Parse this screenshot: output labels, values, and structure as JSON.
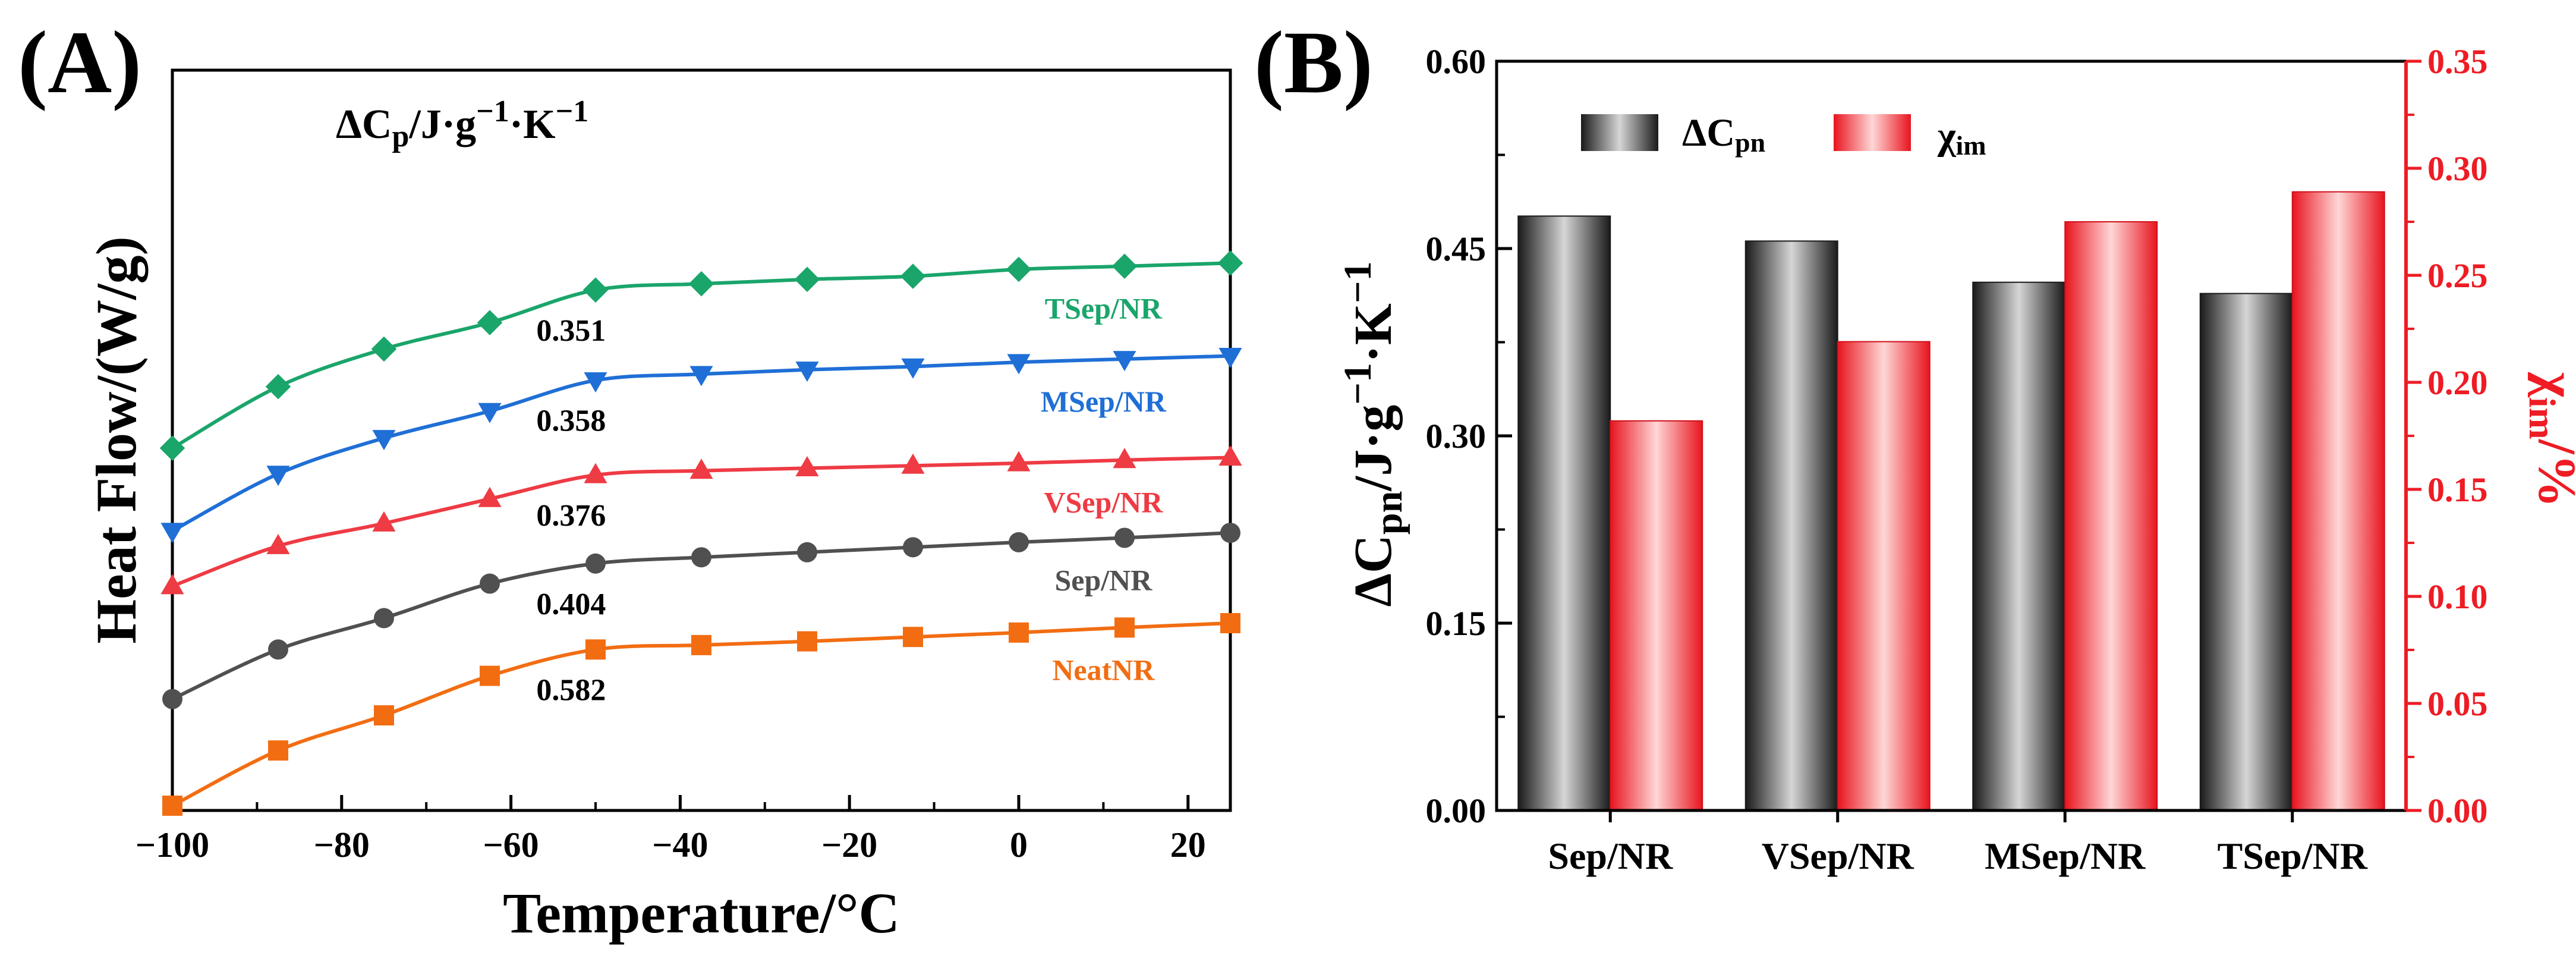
{
  "panel_a": {
    "letter": "(A)"
  },
  "panel_b": {
    "letter": "(B)"
  },
  "chart_data": [
    {
      "type": "line",
      "panel": "(A)",
      "title": "ΔCp/J·g−1·K−1",
      "title_main": "ΔC",
      "title_sub": "p",
      "title_rest": "/J·g",
      "title_sup1": "−1",
      "title_mid": "·K",
      "title_sup2": "−1",
      "xlabel": "Temperature/°C",
      "ylabel": "Heat Flow/(W/g)",
      "xlim": [
        -100,
        25
      ],
      "xticks": [
        -100,
        -80,
        -60,
        -40,
        -20,
        0,
        20
      ],
      "xtick_labels": [
        "−100",
        "−80",
        "−60",
        "−40",
        "−20",
        "0",
        "20"
      ],
      "grid": false,
      "y_units": "arbitrary (curves vertically offset, no y tick labels)",
      "ylim": [
        0,
        100
      ],
      "series": [
        {
          "name": "TSep/NR",
          "color": "#1aa56b",
          "marker": "diamond",
          "annotation": "0.351",
          "x": [
            -100,
            -87.5,
            -75,
            -62.5,
            -50,
            -37.5,
            -25,
            -12.5,
            0,
            12.5,
            25
          ],
          "y": [
            57.0,
            66.8,
            72.8,
            77.0,
            82.2,
            83.2,
            83.9,
            84.4,
            85.5,
            86.0,
            86.5
          ]
        },
        {
          "name": "MSep/NR",
          "color": "#1f6fd6",
          "marker": "triangle-down",
          "annotation": "0.358",
          "x": [
            -100,
            -87.5,
            -75,
            -62.5,
            -50,
            -37.5,
            -25,
            -12.5,
            0,
            12.5,
            25
          ],
          "y": [
            43.8,
            52.9,
            58.6,
            62.9,
            67.8,
            68.8,
            69.5,
            70.0,
            70.7,
            71.2,
            71.7
          ]
        },
        {
          "name": "VSep/NR",
          "color": "#ee3b44",
          "marker": "triangle-up",
          "annotation": "0.376",
          "x": [
            -100,
            -87.5,
            -75,
            -62.5,
            -50,
            -37.5,
            -25,
            -12.5,
            0,
            12.5,
            25
          ],
          "y": [
            35.0,
            41.4,
            45.0,
            48.9,
            52.7,
            53.4,
            53.8,
            54.2,
            54.6,
            55.1,
            55.5
          ]
        },
        {
          "name": "Sep/NR",
          "color": "#505050",
          "marker": "circle",
          "annotation": "0.404",
          "x": [
            -100,
            -87.5,
            -75,
            -62.5,
            -50,
            -37.5,
            -25,
            -12.5,
            0,
            12.5,
            25
          ],
          "y": [
            17.0,
            24.9,
            29.9,
            35.4,
            38.6,
            39.6,
            40.4,
            41.2,
            42.0,
            42.7,
            43.5
          ]
        },
        {
          "name": "NeatNR",
          "color": "#f26d12",
          "marker": "square",
          "annotation": "0.582",
          "x": [
            -100,
            -87.5,
            -75,
            -62.5,
            -50,
            -37.5,
            -25,
            -12.5,
            0,
            12.5,
            25
          ],
          "y": [
            0.0,
            8.8,
            14.4,
            20.7,
            24.9,
            25.6,
            26.2,
            26.9,
            27.6,
            28.4,
            29.1
          ]
        }
      ]
    },
    {
      "type": "bar",
      "panel": "(B)",
      "categories": [
        "Sep/NR",
        "VSep/NR",
        "MSep/NR",
        "TSep/NR"
      ],
      "ylabel_main": "ΔC",
      "ylabel_sub": "pn",
      "ylabel_rest": "/J·g",
      "ylabel_sup1": "−1",
      "ylabel_mid": "·K",
      "ylabel_sup2": "−1",
      "y2label_main": "χ",
      "y2label_sub": "im",
      "y2label_rest": "/%",
      "ylim": [
        0,
        0.6
      ],
      "yticks": [
        "0.00",
        "0.15",
        "0.30",
        "0.45",
        "0.60"
      ],
      "y2lim": [
        0,
        0.35
      ],
      "y2ticks": [
        "0.00",
        "0.05",
        "0.10",
        "0.15",
        "0.20",
        "0.25",
        "0.30",
        "0.35"
      ],
      "legend_position": "top-left",
      "grid": false,
      "series": [
        {
          "name": "ΔCpn",
          "legend_main": "ΔC",
          "legend_sub": "pn",
          "axis": "left",
          "color": "#3a3a3a",
          "values": [
            0.476,
            0.456,
            0.423,
            0.414
          ]
        },
        {
          "name": "χim",
          "legend_main": "χ",
          "legend_sub": "im",
          "axis": "right",
          "color": "#ee1c24",
          "values": [
            0.182,
            0.219,
            0.275,
            0.289
          ]
        }
      ]
    }
  ]
}
